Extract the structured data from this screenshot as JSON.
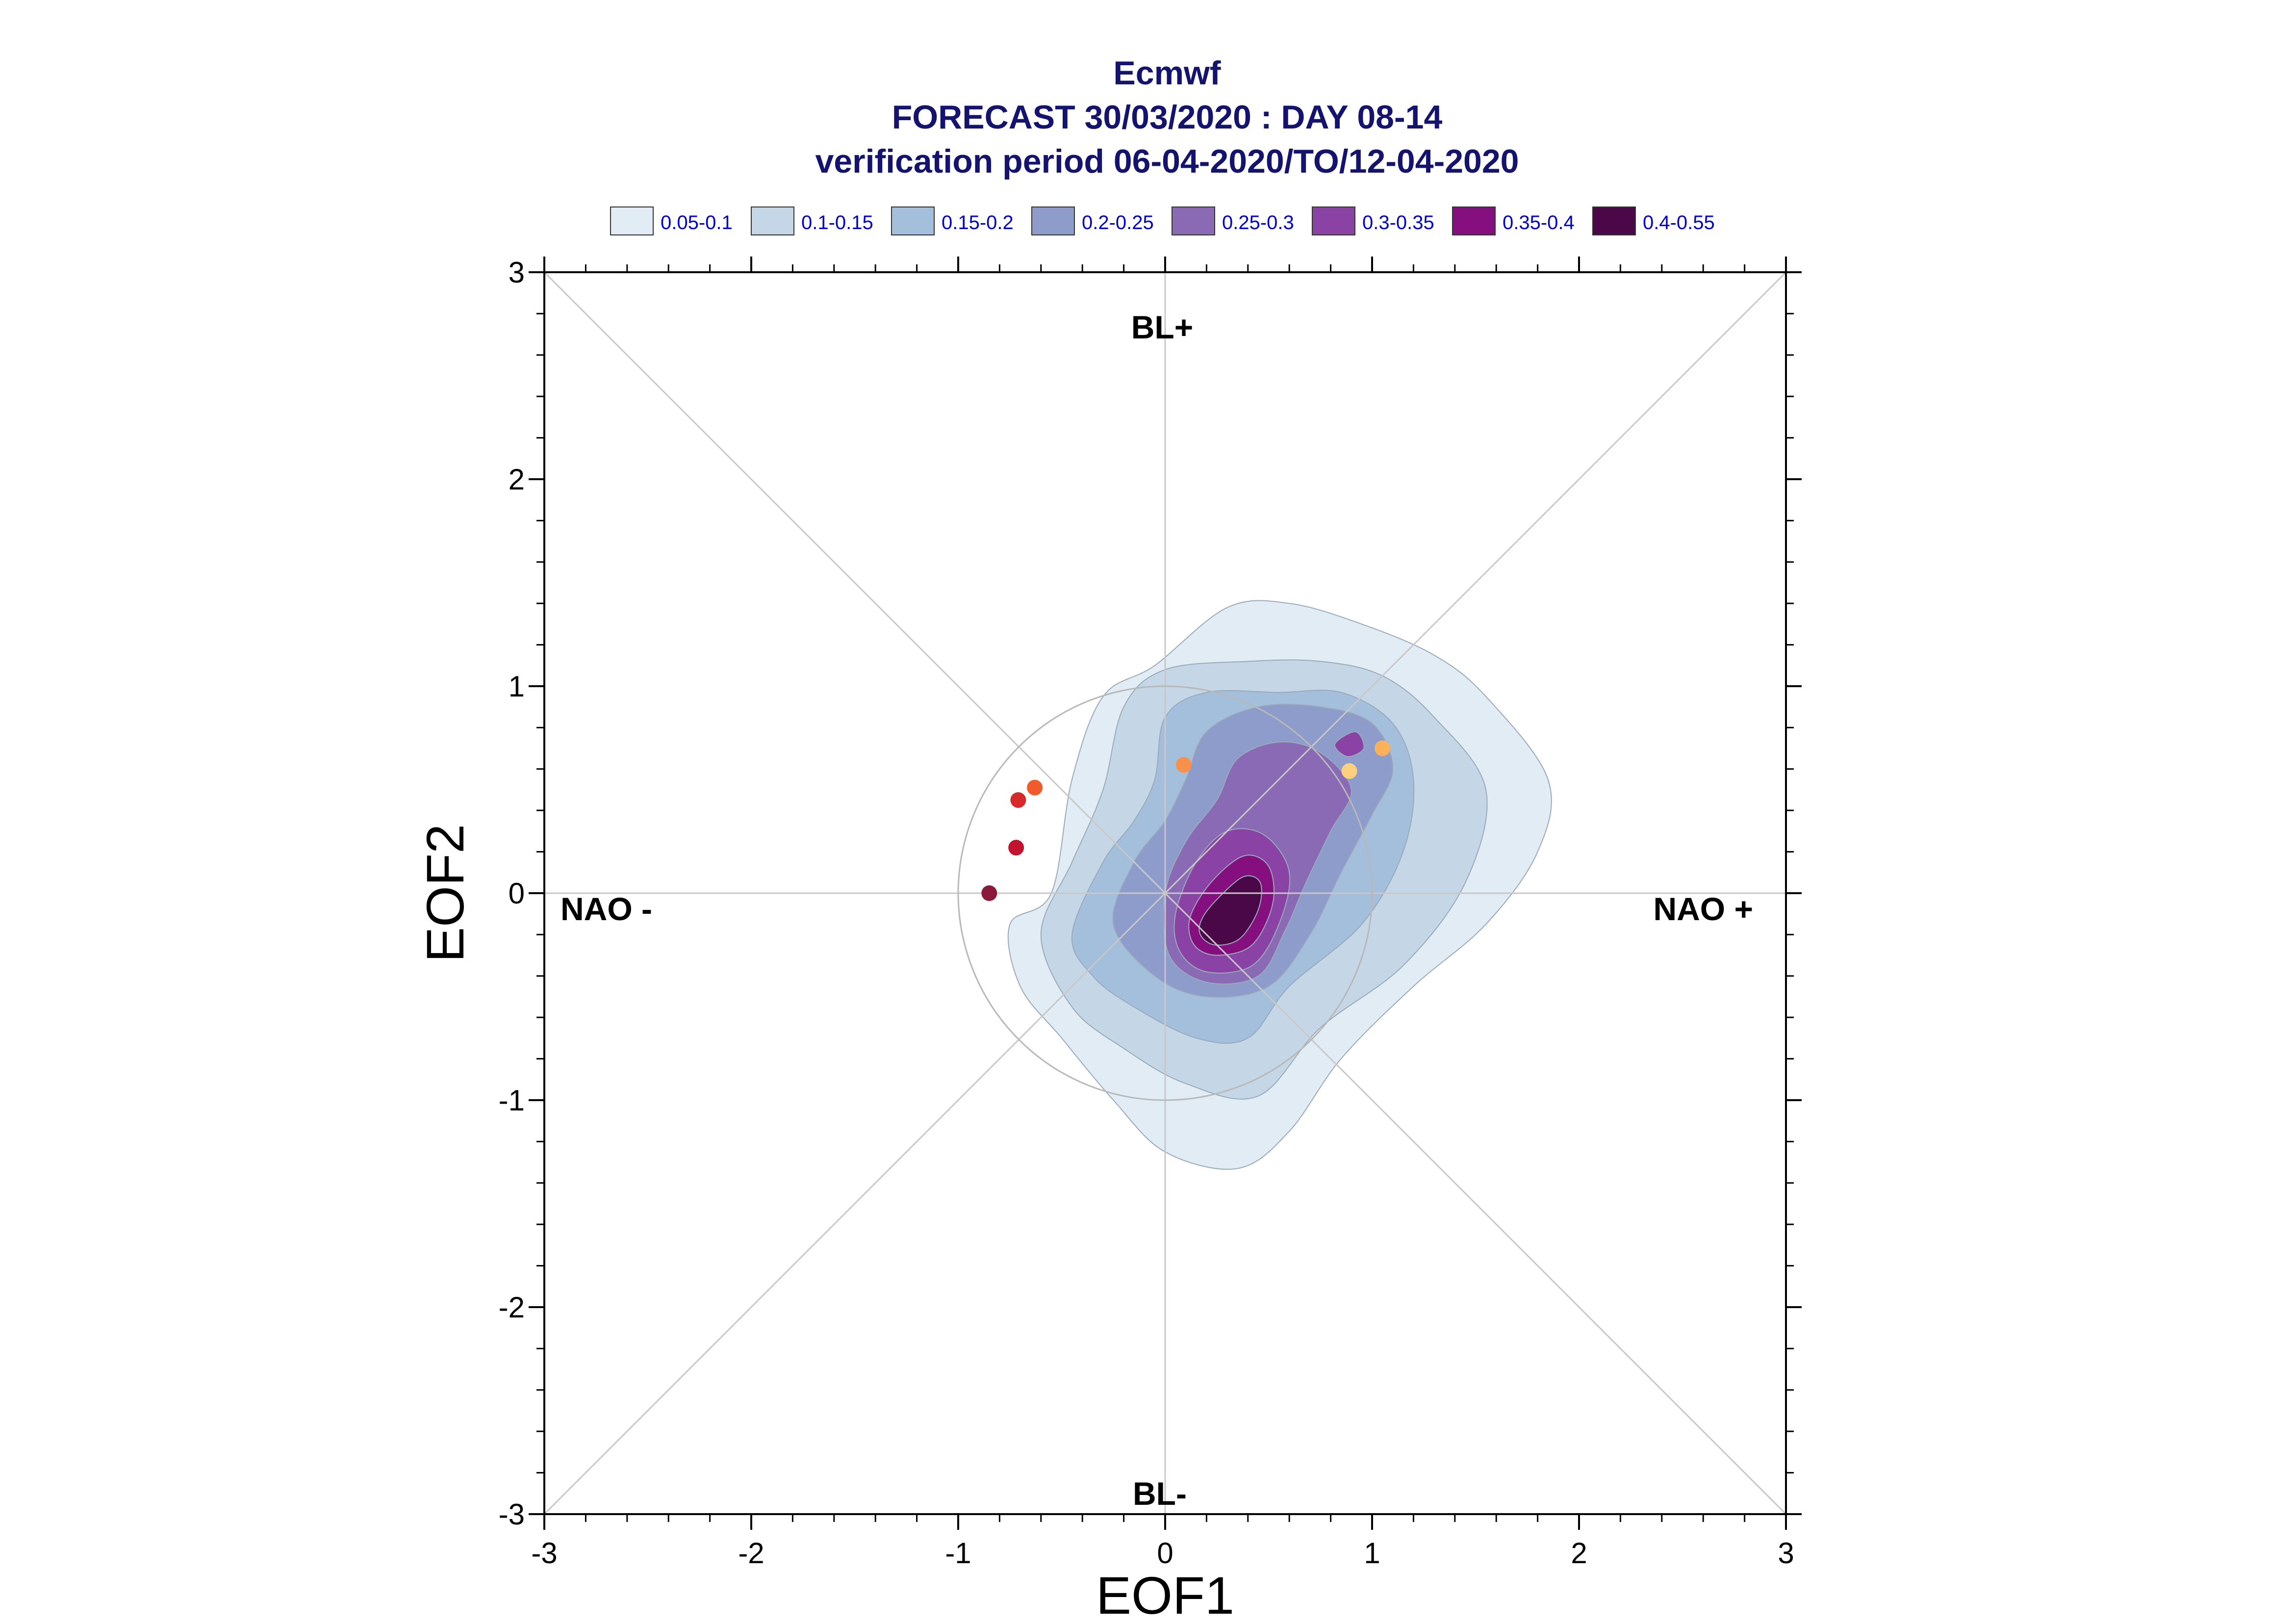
{
  "chart_data": {
    "type": "contour",
    "title_lines": [
      "Ecmwf",
      "FORECAST 30/03/2020 : DAY 08-14",
      "verification period 06-04-2020/TO/12-04-2020"
    ],
    "xlabel": "EOF1",
    "ylabel": "EOF2",
    "xlim": [
      -3,
      3
    ],
    "ylim": [
      -3,
      3
    ],
    "xticks": [
      "-3",
      "-2",
      "-1",
      "0",
      "1",
      "2",
      "3"
    ],
    "yticks": [
      "-3",
      "-2",
      "-1",
      "0",
      "1",
      "2",
      "3"
    ],
    "legend_placement": "top",
    "levels": [
      {
        "label": "0.05-0.1",
        "color": "#e1ecf4"
      },
      {
        "label": "0.1-0.15",
        "color": "#c5d6e6"
      },
      {
        "label": "0.15-0.2",
        "color": "#a3bfdc"
      },
      {
        "label": "0.2-0.25",
        "color": "#8d9ccb"
      },
      {
        "label": "0.25-0.3",
        "color": "#8b6ab5"
      },
      {
        "label": "0.3-0.35",
        "color": "#8a43a4"
      },
      {
        "label": "0.35-0.4",
        "color": "#860f80"
      },
      {
        "label": "0.4-0.55",
        "color": "#4a0848"
      }
    ],
    "regime_labels": {
      "top": "BL+",
      "bottom": "BL-",
      "left": "NAO -",
      "right": "NAO +"
    },
    "unit_circle_radius": 1,
    "trajectory_points": [
      {
        "x": -0.85,
        "y": 0.0,
        "color": "#8b1a3a"
      },
      {
        "x": -0.72,
        "y": 0.22,
        "color": "#c2142e"
      },
      {
        "x": -0.71,
        "y": 0.45,
        "color": "#d62a2a"
      },
      {
        "x": -0.63,
        "y": 0.51,
        "color": "#f15a2b"
      },
      {
        "x": 0.09,
        "y": 0.62,
        "color": "#f7904a"
      },
      {
        "x": 0.89,
        "y": 0.59,
        "color": "#fcd07e"
      },
      {
        "x": 1.05,
        "y": 0.7,
        "color": "#fbb05a"
      }
    ],
    "contours": [
      {
        "level": 0,
        "points": [
          [
            -0.55,
            0.0
          ],
          [
            -0.45,
            0.55
          ],
          [
            -0.3,
            0.95
          ],
          [
            -0.05,
            1.1
          ],
          [
            0.3,
            1.38
          ],
          [
            0.6,
            1.4
          ],
          [
            0.95,
            1.3
          ],
          [
            1.3,
            1.15
          ],
          [
            1.55,
            0.95
          ],
          [
            1.85,
            0.55
          ],
          [
            1.8,
            0.2
          ],
          [
            1.55,
            -0.15
          ],
          [
            1.2,
            -0.45
          ],
          [
            0.85,
            -0.8
          ],
          [
            0.6,
            -1.15
          ],
          [
            0.35,
            -1.33
          ],
          [
            0.0,
            -1.25
          ],
          [
            -0.25,
            -1.0
          ],
          [
            -0.5,
            -0.7
          ],
          [
            -0.7,
            -0.45
          ],
          [
            -0.75,
            -0.15
          ]
        ]
      },
      {
        "level": 1,
        "points": [
          [
            -0.6,
            -0.2
          ],
          [
            -0.45,
            0.15
          ],
          [
            -0.3,
            0.5
          ],
          [
            -0.2,
            0.9
          ],
          [
            0.0,
            1.08
          ],
          [
            0.4,
            1.12
          ],
          [
            0.75,
            1.12
          ],
          [
            1.05,
            1.05
          ],
          [
            1.3,
            0.85
          ],
          [
            1.55,
            0.5
          ],
          [
            1.45,
            0.05
          ],
          [
            1.15,
            -0.35
          ],
          [
            0.75,
            -0.65
          ],
          [
            0.45,
            -0.98
          ],
          [
            0.1,
            -0.92
          ],
          [
            -0.2,
            -0.75
          ],
          [
            -0.45,
            -0.55
          ]
        ]
      },
      {
        "level": 2,
        "points": [
          [
            -0.45,
            -0.2
          ],
          [
            -0.3,
            0.15
          ],
          [
            -0.15,
            0.35
          ],
          [
            -0.05,
            0.55
          ],
          [
            0.0,
            0.85
          ],
          [
            0.2,
            0.97
          ],
          [
            0.55,
            0.97
          ],
          [
            0.85,
            0.97
          ],
          [
            1.1,
            0.82
          ],
          [
            1.2,
            0.55
          ],
          [
            1.15,
            0.2
          ],
          [
            0.95,
            -0.15
          ],
          [
            0.6,
            -0.45
          ],
          [
            0.4,
            -0.7
          ],
          [
            0.15,
            -0.7
          ],
          [
            -0.15,
            -0.55
          ],
          [
            -0.35,
            -0.4
          ]
        ]
      },
      {
        "level": 3,
        "points": [
          [
            -0.25,
            -0.15
          ],
          [
            -0.15,
            0.15
          ],
          [
            0.0,
            0.35
          ],
          [
            0.1,
            0.55
          ],
          [
            0.2,
            0.78
          ],
          [
            0.45,
            0.9
          ],
          [
            0.75,
            0.9
          ],
          [
            1.0,
            0.82
          ],
          [
            1.1,
            0.6
          ],
          [
            1.0,
            0.38
          ],
          [
            0.85,
            0.1
          ],
          [
            0.7,
            -0.2
          ],
          [
            0.5,
            -0.45
          ],
          [
            0.2,
            -0.5
          ],
          [
            -0.05,
            -0.4
          ]
        ]
      },
      {
        "level": 4,
        "points": [
          [
            0.0,
            0.0
          ],
          [
            0.1,
            0.25
          ],
          [
            0.25,
            0.45
          ],
          [
            0.35,
            0.65
          ],
          [
            0.55,
            0.73
          ],
          [
            0.75,
            0.68
          ],
          [
            0.9,
            0.5
          ],
          [
            0.8,
            0.3
          ],
          [
            0.68,
            0.05
          ],
          [
            0.58,
            -0.18
          ],
          [
            0.45,
            -0.4
          ],
          [
            0.2,
            -0.43
          ],
          [
            0.02,
            -0.3
          ]
        ]
      },
      {
        "level": 5,
        "points": [
          [
            0.05,
            -0.1
          ],
          [
            0.15,
            0.15
          ],
          [
            0.3,
            0.3
          ],
          [
            0.48,
            0.28
          ],
          [
            0.6,
            0.1
          ],
          [
            0.55,
            -0.15
          ],
          [
            0.42,
            -0.35
          ],
          [
            0.2,
            -0.38
          ],
          [
            0.07,
            -0.28
          ]
        ]
      },
      {
        "level": 5,
        "points": [
          [
            0.82,
            0.72
          ],
          [
            0.92,
            0.78
          ],
          [
            0.96,
            0.7
          ],
          [
            0.88,
            0.66
          ]
        ]
      },
      {
        "level": 6,
        "points": [
          [
            0.12,
            -0.12
          ],
          [
            0.22,
            0.05
          ],
          [
            0.38,
            0.18
          ],
          [
            0.5,
            0.13
          ],
          [
            0.52,
            -0.05
          ],
          [
            0.42,
            -0.25
          ],
          [
            0.25,
            -0.3
          ],
          [
            0.14,
            -0.25
          ]
        ]
      },
      {
        "level": 7,
        "points": [
          [
            0.18,
            -0.12
          ],
          [
            0.26,
            -0.02
          ],
          [
            0.38,
            0.08
          ],
          [
            0.46,
            0.05
          ],
          [
            0.45,
            -0.08
          ],
          [
            0.36,
            -0.22
          ],
          [
            0.24,
            -0.25
          ],
          [
            0.17,
            -0.2
          ]
        ]
      }
    ]
  }
}
